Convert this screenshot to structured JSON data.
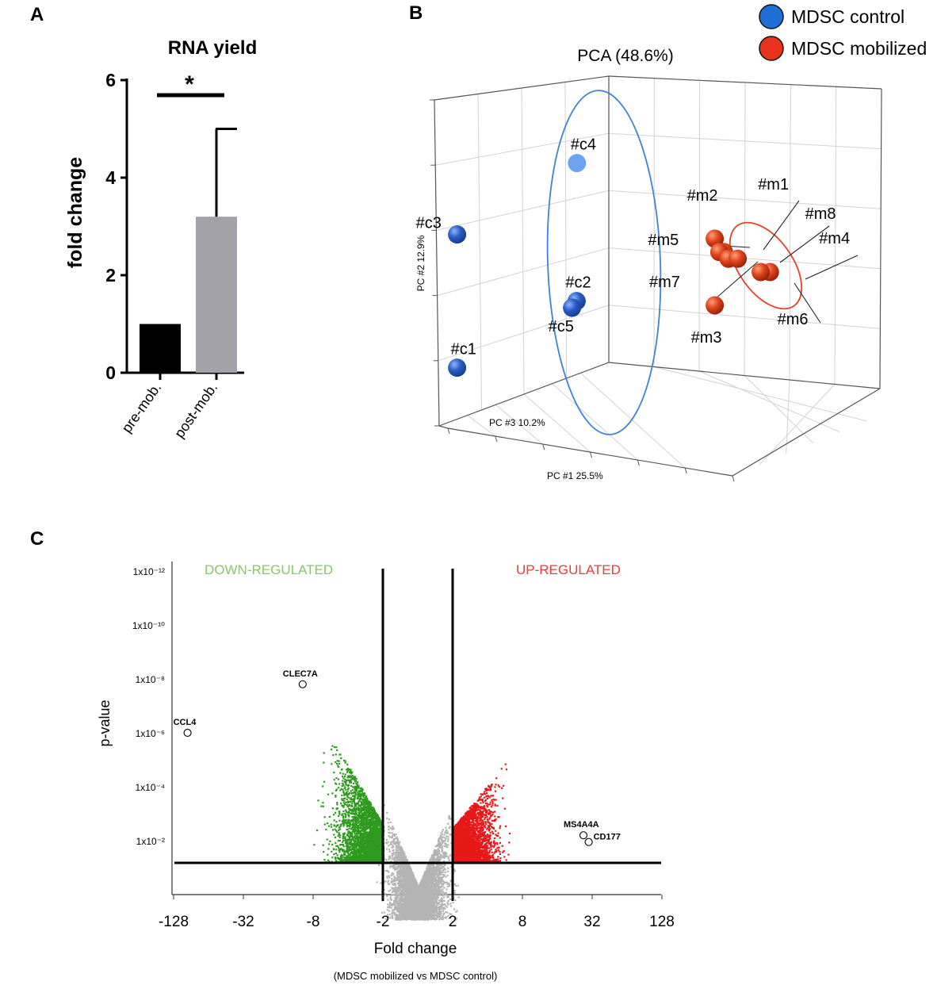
{
  "panels": {
    "a": {
      "letter": "A",
      "chart_data": {
        "type": "bar",
        "title": "RNA yield",
        "categories": [
          "pre-mob.",
          "post-mob."
        ],
        "values": [
          1.0,
          3.2
        ],
        "error_upper": [
          0.0,
          5.0
        ],
        "bar_colors": [
          "#000000",
          "#a2a2a8"
        ],
        "xlabel": "",
        "ylabel": "fold change",
        "ylim": [
          0,
          6
        ],
        "yticks": [
          0,
          2,
          4,
          6
        ],
        "significance": "*"
      }
    },
    "b": {
      "letter": "B",
      "chart_data": {
        "type": "scatter",
        "projection": "3d",
        "title": "PCA (48.6%)",
        "axis_labels": {
          "x": "PC #1 25.5%",
          "y": "PC #2 12.9%",
          "z": "PC #3 10.2%"
        },
        "legend": {
          "placement": "top-right",
          "entries": [
            {
              "name": "MDSC control",
              "color": "#1f6fd6"
            },
            {
              "name": "MDSC mobilized",
              "color": "#e8321c"
            }
          ]
        },
        "series": [
          {
            "name": "MDSC control",
            "color": "#2a5fc4",
            "points": [
              {
                "label": "#c1",
                "pc1": -38,
                "pc2": -14,
                "pc3": 6
              },
              {
                "label": "#c2",
                "pc1": -12,
                "pc2": -4,
                "pc3": 6
              },
              {
                "label": "#c3",
                "pc1": -38,
                "pc2": 6,
                "pc3": 6
              },
              {
                "label": "#c4",
                "pc1": -14,
                "pc2": 16,
                "pc3": 2
              },
              {
                "label": "#c5",
                "pc1": -13,
                "pc2": -5,
                "pc3": 6
              }
            ]
          },
          {
            "name": "MDSC mobilized",
            "color": "#d8401c",
            "points": [
              {
                "label": "#m1",
                "pc1": 19,
                "pc2": 3,
                "pc3": 4
              },
              {
                "label": "#m2",
                "pc1": 17,
                "pc2": 5,
                "pc3": 4
              },
              {
                "label": "#m3",
                "pc1": 17,
                "pc2": -5,
                "pc3": 4
              },
              {
                "label": "#m4",
                "pc1": 29,
                "pc2": 0,
                "pc3": 4
              },
              {
                "label": "#m5",
                "pc1": 18,
                "pc2": 3,
                "pc3": 4
              },
              {
                "label": "#m6",
                "pc1": 27,
                "pc2": 0,
                "pc3": 4
              },
              {
                "label": "#m7",
                "pc1": 20,
                "pc2": 2,
                "pc3": 4
              },
              {
                "label": "#m8",
                "pc1": 22,
                "pc2": 2,
                "pc3": 4
              }
            ]
          }
        ]
      }
    },
    "c": {
      "letter": "C",
      "chart_data": {
        "type": "scatter",
        "subtype": "volcano",
        "xlabel": "Fold change",
        "xlabel_sub": "(MDSC mobilized  vs MDSC control)",
        "ylabel": "p-value",
        "x_ticks": [
          "-128",
          "-32",
          "-8",
          "-2",
          "2",
          "8",
          "32",
          "128"
        ],
        "x_tick_log2": [
          -7,
          -5,
          -3,
          -1,
          1,
          3,
          5,
          7
        ],
        "y_ticks": [
          "1x10⁻²",
          "1x10⁻⁴",
          "1x10⁻⁶",
          "1x10⁻⁸",
          "1x10⁻¹⁰",
          "1x10⁻¹²"
        ],
        "y_tick_neglog10": [
          2,
          4,
          6,
          8,
          10,
          12
        ],
        "thresholds": {
          "fold_change": [
            -2,
            2
          ],
          "p_value": "0.05"
        },
        "region_labels": {
          "down": "DOWN-REGULATED",
          "up": "UP-REGULATED"
        },
        "colors": {
          "down": "#2e9a1e",
          "up": "#e81818",
          "ns": "#b4b4b4"
        },
        "highlighted_genes": [
          {
            "gene": "CCL4",
            "fold_change": -100,
            "p_value": "1x10⁻⁶"
          },
          {
            "gene": "CLEC7A",
            "fold_change": -10,
            "p_value": "1.6x10⁻⁸"
          },
          {
            "gene": "MS4A4A",
            "fold_change": 27,
            "p_value": "6x10⁻³"
          },
          {
            "gene": "CD177",
            "fold_change": 30,
            "p_value": "4x10⁻³"
          }
        ]
      }
    }
  }
}
